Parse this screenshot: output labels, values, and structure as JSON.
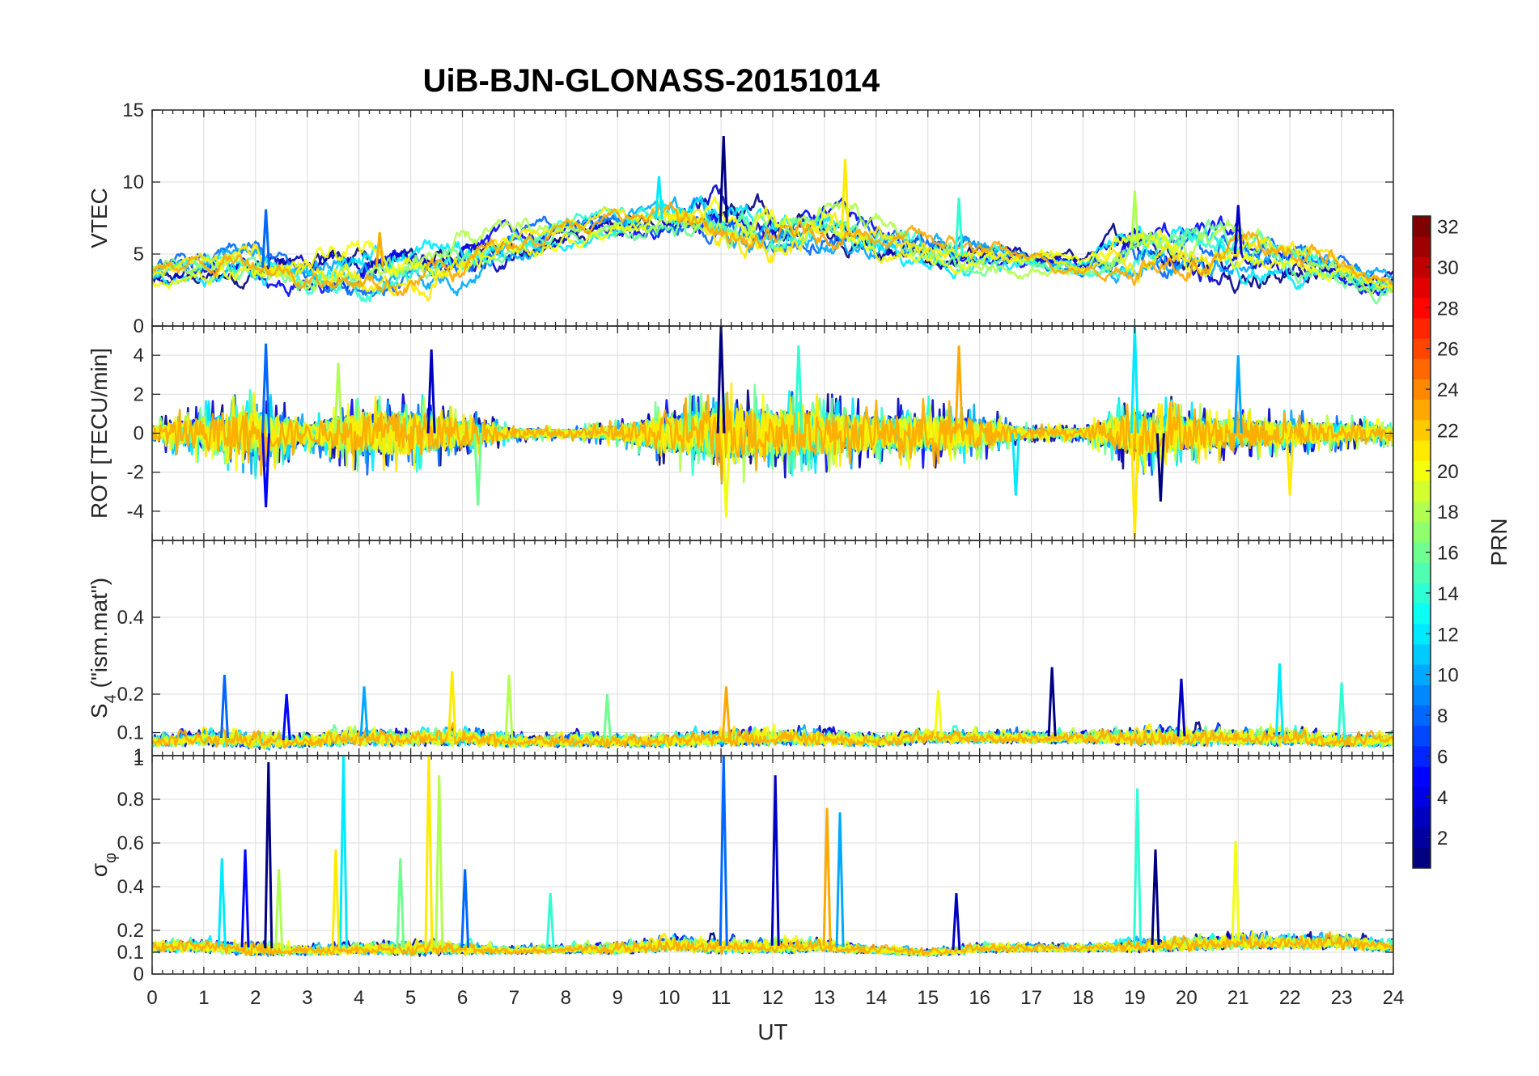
{
  "chart_data": {
    "type": "line",
    "title": "UiB-BJN-GLONASS-20151014",
    "xlabel": "UT",
    "xlim": [
      0,
      24
    ],
    "xticks": [
      "0",
      "1",
      "2",
      "3",
      "4",
      "5",
      "6",
      "7",
      "8",
      "9",
      "10",
      "11",
      "12",
      "13",
      "14",
      "15",
      "16",
      "17",
      "18",
      "19",
      "20",
      "21",
      "22",
      "23",
      "24"
    ],
    "grid": true,
    "panels": [
      {
        "id": "vtec",
        "ylabel": "VTEC",
        "ylim": [
          0,
          15
        ],
        "yticks": [
          0,
          5,
          10,
          15
        ],
        "ytick_labels": [
          "0",
          "5",
          "10",
          "15"
        ],
        "envelope": {
          "x": [
            0,
            1,
            2,
            3,
            4,
            5,
            6,
            7,
            8,
            9,
            10,
            11,
            12,
            13,
            14,
            15,
            16,
            17,
            18,
            19,
            20,
            21,
            22,
            23,
            24
          ],
          "mid": [
            3.5,
            3.8,
            4.2,
            3.5,
            4.0,
            4.2,
            4.6,
            5.8,
            6.5,
            7.0,
            7.5,
            7.2,
            6.5,
            7.0,
            6.0,
            5.0,
            4.8,
            4.5,
            4.2,
            5.5,
            5.2,
            5.0,
            4.5,
            3.8,
            2.8
          ],
          "amp": [
            1.0,
            1.2,
            1.5,
            1.4,
            1.6,
            1.7,
            1.6,
            1.2,
            1.0,
            1.0,
            1.4,
            1.8,
            1.8,
            1.6,
            1.4,
            1.3,
            1.2,
            0.8,
            0.8,
            1.8,
            1.8,
            1.7,
            1.4,
            1.2,
            0.9
          ]
        },
        "spikes": [
          [
            11.05,
            13.2
          ],
          [
            9.8,
            10.4
          ],
          [
            13.4,
            11.6
          ],
          [
            2.2,
            8.1
          ],
          [
            19.0,
            9.4
          ],
          [
            21.0,
            8.4
          ],
          [
            15.6,
            8.9
          ],
          [
            4.4,
            6.5
          ]
        ]
      },
      {
        "id": "rot",
        "ylabel": "ROT [TECU/min]",
        "ylim": [
          -5.5,
          5.5
        ],
        "yticks": [
          -4,
          -2,
          0,
          2,
          4
        ],
        "ytick_labels": [
          "-4",
          "-2",
          "0",
          "2",
          "4"
        ],
        "envelope": {
          "x": [
            0,
            1,
            2,
            3,
            4,
            5,
            6,
            7,
            8,
            9,
            10,
            11,
            12,
            13,
            14,
            15,
            16,
            17,
            18,
            19,
            20,
            21,
            22,
            23,
            24
          ],
          "mid": [
            0,
            0,
            0,
            0,
            0,
            0,
            0,
            0,
            0,
            0,
            0,
            0,
            0,
            0,
            0,
            0,
            0,
            0,
            0,
            0,
            0,
            0,
            0,
            0,
            0
          ],
          "amp": [
            0.6,
            1.4,
            2.0,
            0.8,
            1.8,
            1.8,
            1.2,
            0.4,
            0.3,
            0.6,
            1.6,
            2.2,
            2.0,
            1.8,
            1.4,
            1.6,
            1.2,
            0.4,
            0.4,
            2.0,
            1.4,
            1.2,
            1.0,
            0.8,
            0.6
          ]
        },
        "spikes": [
          [
            11.0,
            5.5
          ],
          [
            19.0,
            5.5
          ],
          [
            19.0,
            -5.4
          ],
          [
            2.2,
            4.6
          ],
          [
            3.6,
            3.6
          ],
          [
            5.4,
            4.3
          ],
          [
            12.5,
            4.5
          ],
          [
            15.6,
            4.5
          ],
          [
            21.0,
            4.0
          ],
          [
            11.1,
            -4.3
          ],
          [
            2.2,
            -3.8
          ],
          [
            6.3,
            -3.7
          ],
          [
            19.5,
            -3.5
          ],
          [
            16.7,
            -3.2
          ],
          [
            22.0,
            -3.2
          ]
        ]
      },
      {
        "id": "s4",
        "ylabel": "S4 (\"ism.mat\")",
        "ylabel_main": "S",
        "ylabel_sub": "4",
        "ylabel_rest": " (\"ism.mat\")",
        "ylim": [
          0.04,
          0.6
        ],
        "yticks": [
          0.1,
          0.2,
          0.4
        ],
        "ytick_labels": [
          "0.1",
          "0.2",
          "0.4"
        ],
        "envelope": {
          "x": [
            0,
            1,
            2,
            3,
            4,
            5,
            6,
            7,
            8,
            9,
            10,
            11,
            12,
            13,
            14,
            15,
            16,
            17,
            18,
            19,
            20,
            21,
            22,
            23,
            24
          ],
          "mid": [
            0.08,
            0.09,
            0.08,
            0.08,
            0.09,
            0.09,
            0.09,
            0.08,
            0.08,
            0.08,
            0.08,
            0.09,
            0.09,
            0.09,
            0.08,
            0.09,
            0.09,
            0.09,
            0.09,
            0.09,
            0.09,
            0.09,
            0.09,
            0.08,
            0.08
          ],
          "amp": [
            0.03,
            0.04,
            0.04,
            0.03,
            0.04,
            0.04,
            0.04,
            0.03,
            0.03,
            0.03,
            0.03,
            0.04,
            0.04,
            0.04,
            0.03,
            0.03,
            0.03,
            0.03,
            0.03,
            0.04,
            0.04,
            0.04,
            0.04,
            0.03,
            0.03
          ]
        },
        "spikes": [
          [
            17.4,
            0.27
          ],
          [
            21.8,
            0.28
          ],
          [
            5.8,
            0.26
          ],
          [
            1.4,
            0.25
          ],
          [
            6.9,
            0.25
          ],
          [
            19.9,
            0.24
          ],
          [
            23.0,
            0.23
          ],
          [
            11.1,
            0.22
          ],
          [
            4.1,
            0.22
          ],
          [
            15.2,
            0.21
          ],
          [
            2.6,
            0.2
          ],
          [
            8.8,
            0.2
          ]
        ]
      },
      {
        "id": "sigphi",
        "ylabel": "σφ",
        "ylabel_main": "σ",
        "ylabel_sub": "φ",
        "ylim": [
          0,
          1.0
        ],
        "yticks": [
          0,
          0.1,
          0.2,
          0.4,
          0.6,
          0.8,
          1
        ],
        "ytick_labels": [
          "0",
          "0.1",
          "0.2",
          "0.4",
          "0.6",
          "0.8",
          "1"
        ],
        "top_overlap_label": "1",
        "envelope": {
          "x": [
            0,
            1,
            2,
            3,
            4,
            5,
            6,
            7,
            8,
            9,
            10,
            11,
            12,
            13,
            14,
            15,
            16,
            17,
            18,
            19,
            20,
            21,
            22,
            23,
            24
          ],
          "mid": [
            0.13,
            0.13,
            0.12,
            0.11,
            0.12,
            0.12,
            0.12,
            0.11,
            0.12,
            0.12,
            0.14,
            0.13,
            0.13,
            0.13,
            0.11,
            0.1,
            0.12,
            0.12,
            0.12,
            0.13,
            0.14,
            0.15,
            0.15,
            0.15,
            0.13
          ],
          "amp": [
            0.05,
            0.05,
            0.06,
            0.04,
            0.05,
            0.06,
            0.05,
            0.03,
            0.04,
            0.05,
            0.06,
            0.06,
            0.06,
            0.05,
            0.03,
            0.03,
            0.04,
            0.03,
            0.03,
            0.05,
            0.06,
            0.06,
            0.06,
            0.06,
            0.05
          ]
        },
        "spikes": [
          [
            2.25,
            0.97
          ],
          [
            3.7,
            1.0
          ],
          [
            5.35,
            1.0
          ],
          [
            11.05,
            1.0
          ],
          [
            5.55,
            0.91
          ],
          [
            12.05,
            0.91
          ],
          [
            19.05,
            0.85
          ],
          [
            13.05,
            0.76
          ],
          [
            13.3,
            0.74
          ],
          [
            20.95,
            0.61
          ],
          [
            1.8,
            0.57
          ],
          [
            4.8,
            0.53
          ],
          [
            19.4,
            0.57
          ],
          [
            1.35,
            0.53
          ],
          [
            3.55,
            0.57
          ],
          [
            6.05,
            0.48
          ],
          [
            2.45,
            0.48
          ],
          [
            15.55,
            0.37
          ],
          [
            7.7,
            0.37
          ]
        ]
      }
    ],
    "colorbar": {
      "label": "PRN",
      "colormap": "jet",
      "range": [
        1,
        32
      ],
      "ticks": [
        2,
        4,
        6,
        8,
        10,
        12,
        14,
        16,
        18,
        20,
        22,
        24,
        26,
        28,
        30,
        32
      ],
      "tick_labels": [
        "2",
        "4",
        "6",
        "8",
        "10",
        "12",
        "14",
        "16",
        "18",
        "20",
        "22",
        "24",
        "26",
        "28",
        "30",
        "32"
      ]
    },
    "series_prns": [
      1,
      3,
      5,
      8,
      10,
      12,
      14,
      16,
      18,
      20,
      21,
      23
    ]
  }
}
